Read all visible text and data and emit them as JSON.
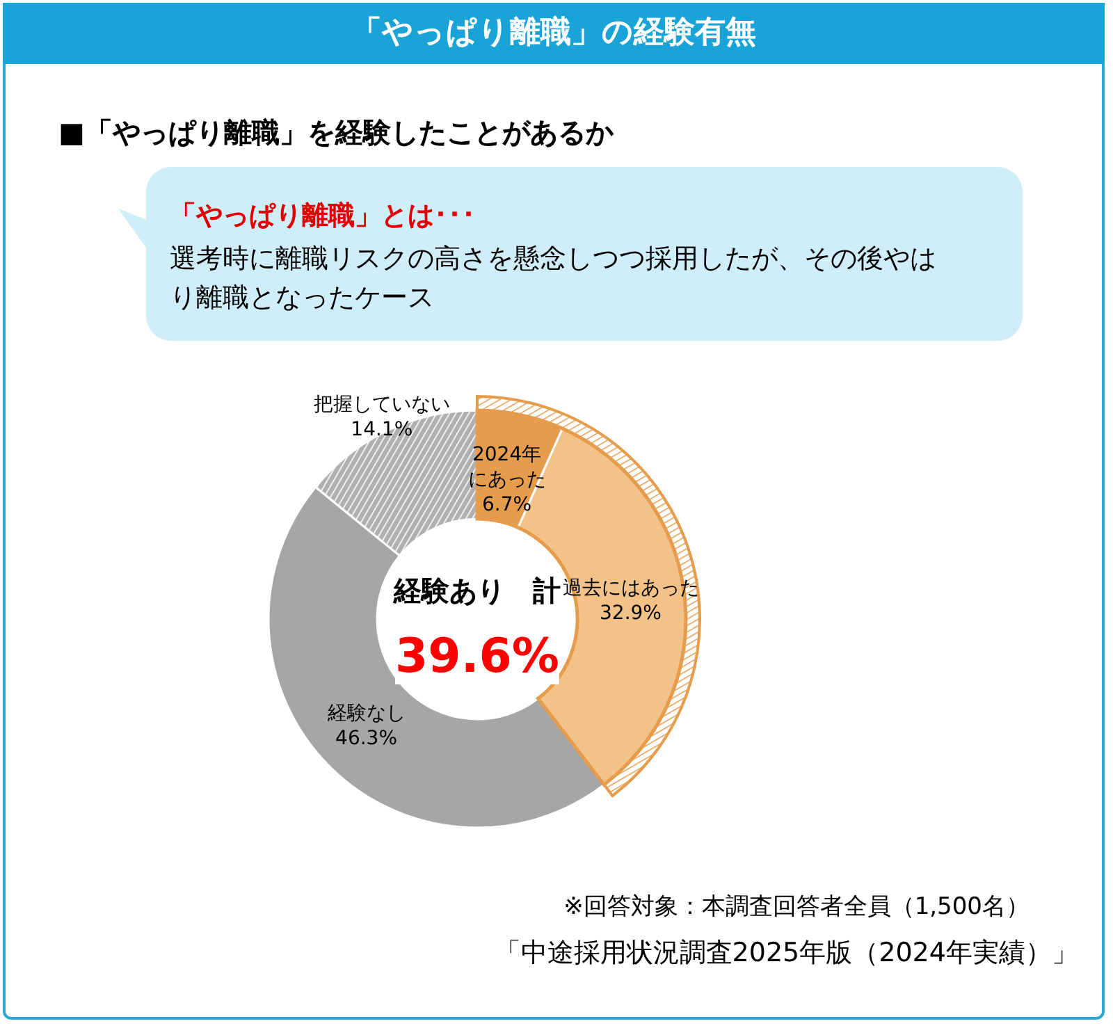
{
  "chart_data": {
    "type": "donut",
    "title": "「やっぱり離職」の経験有無",
    "subtitle": "■「やっぱり離職」を経験したことがあるか",
    "categories": [
      "2024年にあった",
      "過去にはあった",
      "経験なし",
      "把握していない"
    ],
    "values": [
      6.7,
      32.9,
      46.3,
      14.1
    ],
    "value_labels": [
      "6.7%",
      "32.9%",
      "46.3%",
      "14.1%"
    ],
    "colors": [
      "#e59c4c",
      "#f2c289",
      "#a6a6a6",
      "#b0b0b0"
    ],
    "annotations": [
      "「やっぱり離職」とは･･･",
      "選考時に離職リスクの高さを懸念しつつ採用したが、その後やはり離職となったケース",
      "経験あり　計",
      "39.6%",
      "※回答対象：本調査回答者全員（1,500名）",
      "「中途採用状況調査2025年版（2024年実績）」"
    ],
    "data_labels": false
  }
}
